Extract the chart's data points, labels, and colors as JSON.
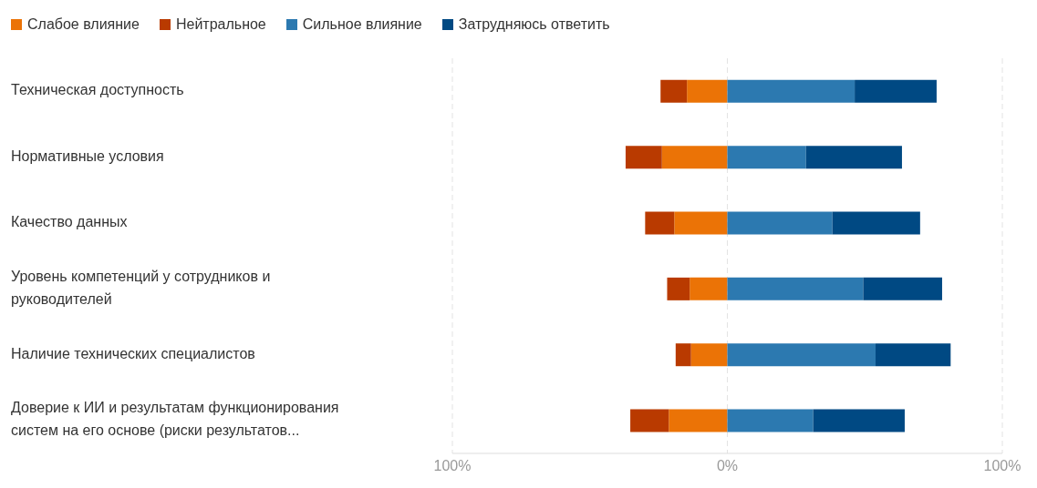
{
  "chart_data": {
    "type": "bar",
    "orientation": "horizontal",
    "stacked": true,
    "categories": [
      "Техническая доступность",
      "Нормативные условия",
      "Качество данных",
      "Уровень компетенций у сотрудников и руководителей",
      "Наличие технических специалистов",
      "Доверие к ИИ и результатам функционирования систем на его основе (риски результатов..."
    ],
    "series": [
      {
        "name": "Слабое влияние",
        "color": "#eb7306",
        "values": [
          -14.7,
          -23.8,
          -19.3,
          -13.7,
          -13.2,
          -21.3
        ]
      },
      {
        "name": "Нейтральное",
        "color": "#b93a00",
        "values": [
          -9.6,
          -13.2,
          -10.6,
          -8.2,
          -5.6,
          -14
        ]
      },
      {
        "name": "Сильное влияние",
        "color": "#2c79b0",
        "values": [
          46.3,
          28.6,
          38.2,
          49.4,
          53.9,
          31.2
        ]
      },
      {
        "name": "Затрудняюсь ответить",
        "color": "#004983",
        "values": [
          29.8,
          34.9,
          31.9,
          28.7,
          27.3,
          33.3
        ]
      }
    ],
    "xlim": [
      -100,
      100
    ],
    "xticks": [
      {
        "value": -100,
        "label": "100%"
      },
      {
        "value": 0,
        "label": "0%"
      },
      {
        "value": 100,
        "label": "100%"
      }
    ],
    "grid": "x",
    "legend": "top left"
  }
}
